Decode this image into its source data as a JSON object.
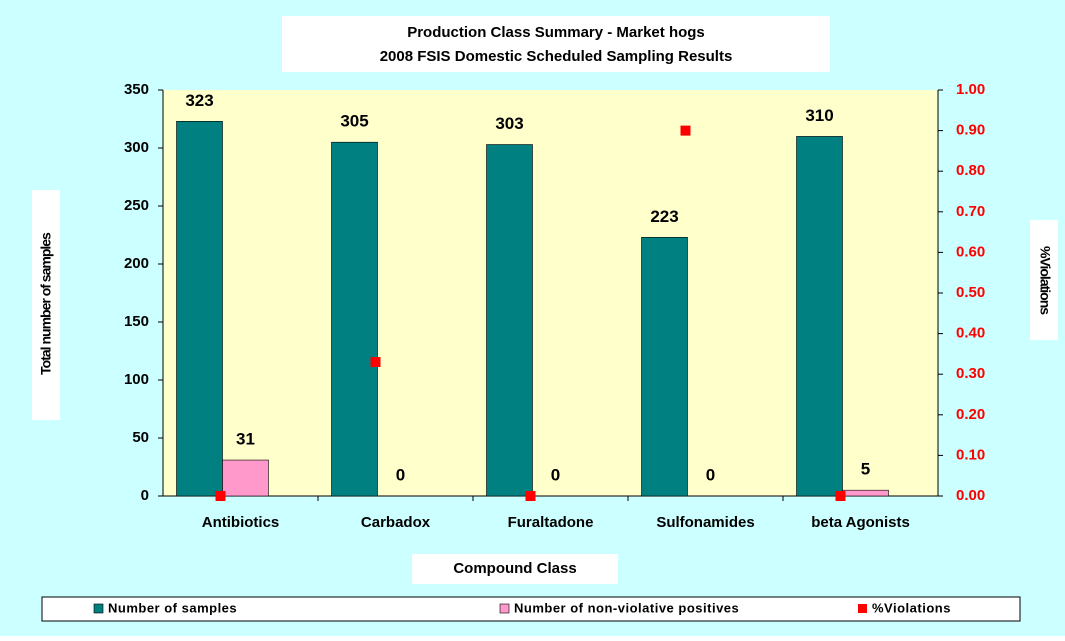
{
  "chart_data": {
    "type": "bar",
    "title": [
      "Production Class Summary - Market hogs",
      "2008 FSIS Domestic Scheduled Sampling Results"
    ],
    "x_label": "Compound Class",
    "y_label": "Total number of samples",
    "y2_label": "%Violations",
    "categories": [
      "Antibiotics",
      "Carbadox",
      "Furaltadone",
      "Sulfonamides",
      "beta Agonists"
    ],
    "series": [
      {
        "name": "Number of samples",
        "color": "#008080",
        "values": [
          323,
          305,
          303,
          223,
          310
        ]
      },
      {
        "name": "Number of non-violative positives",
        "color": "#ff99cc",
        "values": [
          31,
          0,
          0,
          0,
          5
        ]
      },
      {
        "name": "%Violations",
        "color": "#ff0000",
        "type": "scatter",
        "axis": "y2",
        "values": [
          0,
          0.33,
          0,
          0.9,
          0
        ]
      }
    ],
    "ylim": [
      0,
      350
    ],
    "yticks": [
      0,
      50,
      100,
      150,
      200,
      250,
      300,
      350
    ],
    "y2lim": [
      0,
      1
    ],
    "y2ticks": [
      {
        "value": 0,
        "label": "0.00"
      },
      {
        "value": 0.1,
        "label": "0.10"
      },
      {
        "value": 0.2,
        "label": "0.20"
      },
      {
        "value": 0.3,
        "label": "0.30"
      },
      {
        "value": 0.4,
        "label": "0.40"
      },
      {
        "value": 0.5,
        "label": "0.50"
      },
      {
        "value": 0.6,
        "label": "0.60"
      },
      {
        "value": 0.7,
        "label": "0.70"
      },
      {
        "value": 0.8,
        "label": "0.80"
      },
      {
        "value": 0.9,
        "label": "0.90"
      },
      {
        "value": 1,
        "label": "1.00"
      }
    ],
    "legend": "bottom",
    "grid": false
  }
}
